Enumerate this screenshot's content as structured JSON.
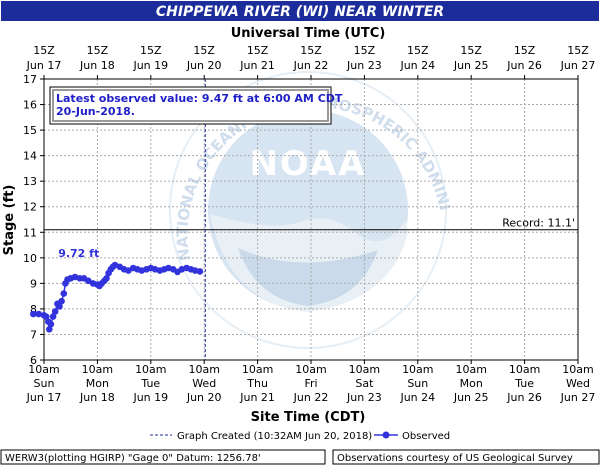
{
  "title": "CHIPPEWA RIVER (WI) NEAR WINTER",
  "top_axis_title": "Universal Time (UTC)",
  "top_ticks": [
    {
      "hour": "15Z",
      "date": "Jun 17"
    },
    {
      "hour": "15Z",
      "date": "Jun 18"
    },
    {
      "hour": "15Z",
      "date": "Jun 19"
    },
    {
      "hour": "15Z",
      "date": "Jun 20"
    },
    {
      "hour": "15Z",
      "date": "Jun 21"
    },
    {
      "hour": "15Z",
      "date": "Jun 22"
    },
    {
      "hour": "15Z",
      "date": "Jun 23"
    },
    {
      "hour": "15Z",
      "date": "Jun 24"
    },
    {
      "hour": "15Z",
      "date": "Jun 25"
    },
    {
      "hour": "15Z",
      "date": "Jun 26"
    },
    {
      "hour": "15Z",
      "date": "Jun 27"
    }
  ],
  "bottom_ticks": [
    {
      "time": "10am",
      "day": "Sun",
      "date": "Jun 17"
    },
    {
      "time": "10am",
      "day": "Mon",
      "date": "Jun 18"
    },
    {
      "time": "10am",
      "day": "Tue",
      "date": "Jun 19"
    },
    {
      "time": "10am",
      "day": "Wed",
      "date": "Jun 20"
    },
    {
      "time": "10am",
      "day": "Thu",
      "date": "Jun 21"
    },
    {
      "time": "10am",
      "day": "Fri",
      "date": "Jun 22"
    },
    {
      "time": "10am",
      "day": "Sat",
      "date": "Jun 23"
    },
    {
      "time": "10am",
      "day": "Sun",
      "date": "Jun 24"
    },
    {
      "time": "10am",
      "day": "Mon",
      "date": "Jun 25"
    },
    {
      "time": "10am",
      "day": "Tue",
      "date": "Jun 26"
    },
    {
      "time": "10am",
      "day": "Wed",
      "date": "Jun 27"
    }
  ],
  "bottom_axis_title": "Site Time (CDT)",
  "watermark_text": "NATIONAL OCEANIC AND ATMOSPHERIC ADMINISTRATION U.S. DEPARTMENT OF COMMERCE",
  "watermark_logo": "NOAA",
  "latest_box": {
    "line1": "Latest observed value: 9.47 ft at 6:00 AM CDT",
    "line2": "20-Jun-2018."
  },
  "legend": {
    "graph_created": "Graph Created (10:32AM Jun 20, 2018)",
    "observed": "Observed"
  },
  "footer": {
    "left": "WERW3(plotting HGIRP) \"Gage 0\" Datum: 1256.78'",
    "right": "Observations courtesy of US Geological Survey"
  },
  "colors": {
    "title_bar": "#1c2d9b",
    "observed": "#3333dd",
    "record": "#000000",
    "watermark": "#b8cfe6"
  },
  "chart_data": {
    "type": "scatter",
    "title": "CHIPPEWA RIVER (WI) NEAR WINTER",
    "xlabel": "Site Time (CDT)",
    "x2label": "Universal Time (UTC)",
    "ylabel": "Stage (ft)",
    "ylim": [
      6,
      17
    ],
    "yticks": [
      6,
      7,
      8,
      9,
      10,
      11,
      12,
      13,
      14,
      15,
      16,
      17
    ],
    "xlim_days": [
      0,
      10
    ],
    "x_origin_label": "10am Sun Jun 17",
    "grid": true,
    "record": {
      "value": 11.1,
      "label": "Record: 11.1'"
    },
    "graph_created_day": 3.02,
    "peak_label": {
      "text": "9.72 ft",
      "day": 0.65,
      "value": 9.72
    },
    "series": [
      {
        "name": "Observed",
        "points": [
          [
            -0.2,
            7.8
          ],
          [
            -0.1,
            7.8
          ],
          [
            0.0,
            7.75
          ],
          [
            0.04,
            7.7
          ],
          [
            0.08,
            7.5
          ],
          [
            0.1,
            7.2
          ],
          [
            0.13,
            7.4
          ],
          [
            0.17,
            7.7
          ],
          [
            0.21,
            7.9
          ],
          [
            0.25,
            8.2
          ],
          [
            0.29,
            8.1
          ],
          [
            0.33,
            8.3
          ],
          [
            0.37,
            8.6
          ],
          [
            0.4,
            9.0
          ],
          [
            0.44,
            9.15
          ],
          [
            0.5,
            9.2
          ],
          [
            0.58,
            9.25
          ],
          [
            0.67,
            9.2
          ],
          [
            0.75,
            9.2
          ],
          [
            0.83,
            9.1
          ],
          [
            0.92,
            9.0
          ],
          [
            1.0,
            8.95
          ],
          [
            1.04,
            8.9
          ],
          [
            1.08,
            9.0
          ],
          [
            1.13,
            9.1
          ],
          [
            1.17,
            9.2
          ],
          [
            1.21,
            9.4
          ],
          [
            1.25,
            9.55
          ],
          [
            1.29,
            9.65
          ],
          [
            1.33,
            9.72
          ],
          [
            1.42,
            9.65
          ],
          [
            1.5,
            9.55
          ],
          [
            1.58,
            9.5
          ],
          [
            1.67,
            9.6
          ],
          [
            1.75,
            9.55
          ],
          [
            1.83,
            9.5
          ],
          [
            1.92,
            9.55
          ],
          [
            2.0,
            9.6
          ],
          [
            2.08,
            9.55
          ],
          [
            2.17,
            9.5
          ],
          [
            2.25,
            9.55
          ],
          [
            2.33,
            9.6
          ],
          [
            2.42,
            9.55
          ],
          [
            2.5,
            9.45
          ],
          [
            2.58,
            9.55
          ],
          [
            2.67,
            9.6
          ],
          [
            2.75,
            9.55
          ],
          [
            2.83,
            9.5
          ],
          [
            2.92,
            9.47
          ]
        ]
      }
    ]
  }
}
